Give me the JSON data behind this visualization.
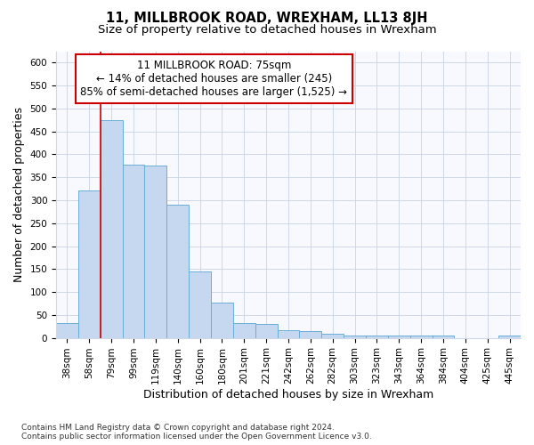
{
  "title": "11, MILLBROOK ROAD, WREXHAM, LL13 8JH",
  "subtitle": "Size of property relative to detached houses in Wrexham",
  "xlabel": "Distribution of detached houses by size in Wrexham",
  "ylabel": "Number of detached properties",
  "categories": [
    "38sqm",
    "58sqm",
    "79sqm",
    "99sqm",
    "119sqm",
    "140sqm",
    "160sqm",
    "180sqm",
    "201sqm",
    "221sqm",
    "242sqm",
    "262sqm",
    "282sqm",
    "303sqm",
    "323sqm",
    "343sqm",
    "364sqm",
    "384sqm",
    "404sqm",
    "425sqm",
    "445sqm"
  ],
  "values": [
    32,
    322,
    474,
    377,
    376,
    290,
    145,
    77,
    33,
    30,
    16,
    15,
    8,
    6,
    5,
    5,
    5,
    5,
    0,
    0,
    5
  ],
  "bar_color": "#c5d8f0",
  "bar_edge_color": "#6aaed6",
  "grid_color": "#d0d8e8",
  "annotation_text_line1": "11 MILLBROOK ROAD: 75sqm",
  "annotation_text_line2": "← 14% of detached houses are smaller (245)",
  "annotation_text_line3": "85% of semi-detached houses are larger (1,525) →",
  "annotation_box_facecolor": "#ffffff",
  "annotation_box_edgecolor": "#cc0000",
  "vline_color": "#cc0000",
  "vline_x": 1.5,
  "ylim_max": 625,
  "yticks": [
    0,
    50,
    100,
    150,
    200,
    250,
    300,
    350,
    400,
    450,
    500,
    550,
    600
  ],
  "footnote": "Contains HM Land Registry data © Crown copyright and database right 2024.\nContains public sector information licensed under the Open Government Licence v3.0.",
  "background_color": "#ffffff",
  "plot_background": "#f7f9ff",
  "title_fontsize": 10.5,
  "subtitle_fontsize": 9.5,
  "axis_label_fontsize": 9,
  "tick_fontsize": 7.5,
  "footnote_fontsize": 6.5,
  "annotation_fontsize": 8.5
}
